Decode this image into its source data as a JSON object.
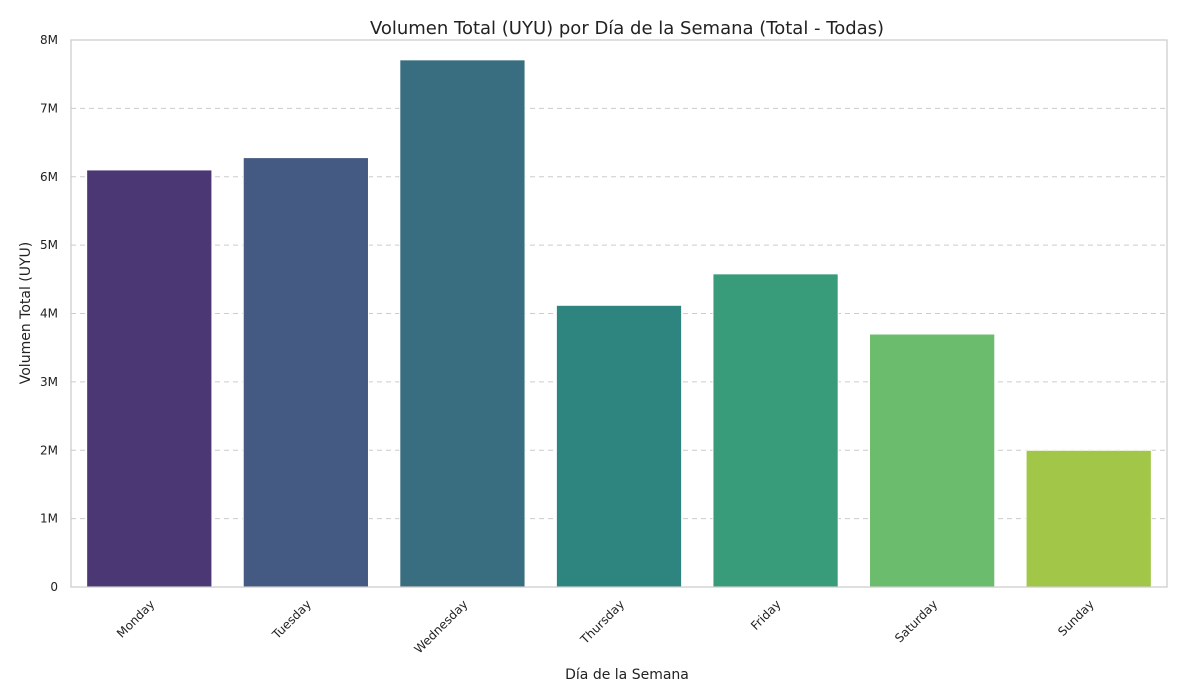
{
  "chart_data": {
    "type": "bar",
    "title": "Volumen Total (UYU) por Día de la Semana (Total - Todas)",
    "xlabel": "Día de la Semana",
    "ylabel": "Volumen Total (UYU)",
    "categories": [
      "Monday",
      "Tuesday",
      "Wednesday",
      "Thursday",
      "Friday",
      "Saturday",
      "Sunday"
    ],
    "values": [
      6100000,
      6280000,
      7710000,
      4120000,
      4580000,
      3700000,
      2000000
    ],
    "colors": [
      "#4b3774",
      "#455a82",
      "#386e80",
      "#2e8580",
      "#389c7b",
      "#6bbc6c",
      "#a2c748"
    ],
    "ylim": [
      0,
      8000000
    ],
    "yticks": [
      0,
      1000000,
      2000000,
      3000000,
      4000000,
      5000000,
      6000000,
      7000000,
      8000000
    ],
    "ytick_labels": [
      "0",
      "1M",
      "2M",
      "3M",
      "4M",
      "5M",
      "6M",
      "7M",
      "8M"
    ],
    "grid": "y",
    "legend": "none"
  }
}
